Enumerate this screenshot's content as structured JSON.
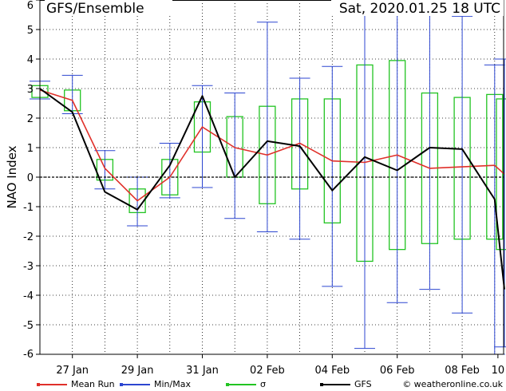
{
  "chart_data": {
    "type": "line",
    "title": "GFS/Ensemble",
    "date_label": "Sat, 2020.01.25   18 UTC",
    "ylabel": "NAO Index",
    "xlabel": "",
    "ylim": [
      -6,
      6
    ],
    "xlim": [
      0,
      14.3
    ],
    "yticks": [
      -6,
      -5,
      -4,
      -3,
      -2,
      -1,
      0,
      1,
      2,
      3,
      4,
      5,
      6
    ],
    "xticks": [
      {
        "x": 1,
        "label": "27 Jan"
      },
      {
        "x": 3,
        "label": "29 Jan"
      },
      {
        "x": 5,
        "label": "31 Jan"
      },
      {
        "x": 7,
        "label": "02 Feb"
      },
      {
        "x": 9,
        "label": "04 Feb"
      },
      {
        "x": 11,
        "label": "06 Feb"
      },
      {
        "x": 13,
        "label": "08 Feb"
      },
      {
        "x": 14.1,
        "label": "10"
      }
    ],
    "grid": true,
    "series": [
      {
        "name": "Mean Run",
        "color": "#e0302a",
        "x": [
          0,
          1,
          2,
          3,
          4,
          5,
          6,
          7,
          8,
          9,
          10,
          11,
          12,
          13,
          14,
          14.3
        ],
        "values": [
          2.95,
          2.6,
          0.3,
          -0.8,
          0,
          1.7,
          1.0,
          0.75,
          1.15,
          0.55,
          0.5,
          0.75,
          0.3,
          0.35,
          0.4,
          0.1
        ]
      },
      {
        "name": "GFS",
        "color": "#000000",
        "x": [
          0,
          1,
          2,
          3,
          4,
          5,
          6,
          7,
          8,
          9,
          10,
          11,
          12,
          13,
          14,
          14.3
        ],
        "values": [
          3.0,
          2.2,
          -0.5,
          -1.1,
          0.4,
          2.75,
          0,
          1.22,
          1.05,
          -0.45,
          0.68,
          0.23,
          1.0,
          0.95,
          -0.75,
          -3.8
        ]
      }
    ],
    "minmax": {
      "name": "Min/Max",
      "color": "#2c46d0",
      "items": [
        {
          "x": 0,
          "min": 2.65,
          "max": 3.25
        },
        {
          "x": 1,
          "min": 2.15,
          "max": 3.45
        },
        {
          "x": 2,
          "min": -0.4,
          "max": 0.9
        },
        {
          "x": 3,
          "min": -1.65,
          "max": 0
        },
        {
          "x": 4,
          "min": -0.7,
          "max": 1.15
        },
        {
          "x": 5,
          "min": -0.35,
          "max": 3.1
        },
        {
          "x": 6,
          "min": -1.4,
          "max": 2.85
        },
        {
          "x": 7,
          "min": -1.85,
          "max": 5.25
        },
        {
          "x": 8,
          "min": -2.1,
          "max": 3.35
        },
        {
          "x": 9,
          "min": -3.7,
          "max": 3.75
        },
        {
          "x": 10,
          "min": -5.8,
          "max": 6.0
        },
        {
          "x": 11,
          "min": -4.25,
          "max": 6.0
        },
        {
          "x": 12,
          "min": -3.8,
          "max": 5.9
        },
        {
          "x": 13,
          "min": -4.6,
          "max": 5.45
        },
        {
          "x": 14,
          "min": -6.0,
          "max": 3.8
        },
        {
          "x": 14.3,
          "min": -5.75,
          "max": 4.0
        }
      ]
    },
    "sigma": {
      "name": "σ",
      "color": "#22c422",
      "items": [
        {
          "x": 0,
          "low": 2.7,
          "high": 3.1
        },
        {
          "x": 1,
          "low": 2.25,
          "high": 2.95
        },
        {
          "x": 2,
          "low": -0.1,
          "high": 0.6
        },
        {
          "x": 3,
          "low": -1.2,
          "high": -0.4
        },
        {
          "x": 4,
          "low": -0.6,
          "high": 0.6
        },
        {
          "x": 5,
          "low": 0.85,
          "high": 2.55
        },
        {
          "x": 6,
          "low": 0,
          "high": 2.05
        },
        {
          "x": 7,
          "low": -0.9,
          "high": 2.4
        },
        {
          "x": 8,
          "low": -0.4,
          "high": 2.65
        },
        {
          "x": 9,
          "low": -1.55,
          "high": 2.65
        },
        {
          "x": 10,
          "low": -2.85,
          "high": 3.8
        },
        {
          "x": 11,
          "low": -2.45,
          "high": 3.95
        },
        {
          "x": 12,
          "low": -2.25,
          "high": 2.85
        },
        {
          "x": 13,
          "low": -2.1,
          "high": 2.7
        },
        {
          "x": 14,
          "low": -2.1,
          "high": 2.8
        },
        {
          "x": 14.3,
          "low": -2.45,
          "high": 2.65
        }
      ]
    },
    "legend": [
      {
        "key": "mean",
        "label": "Mean Run",
        "color": "#e0302a"
      },
      {
        "key": "minmax",
        "label": "Min/Max",
        "color": "#2c46d0"
      },
      {
        "key": "sigma",
        "label": "σ",
        "color": "#22c422"
      },
      {
        "key": "gfs",
        "label": "GFS",
        "color": "#000000"
      }
    ],
    "credit": "© weatheronline.co.uk"
  }
}
